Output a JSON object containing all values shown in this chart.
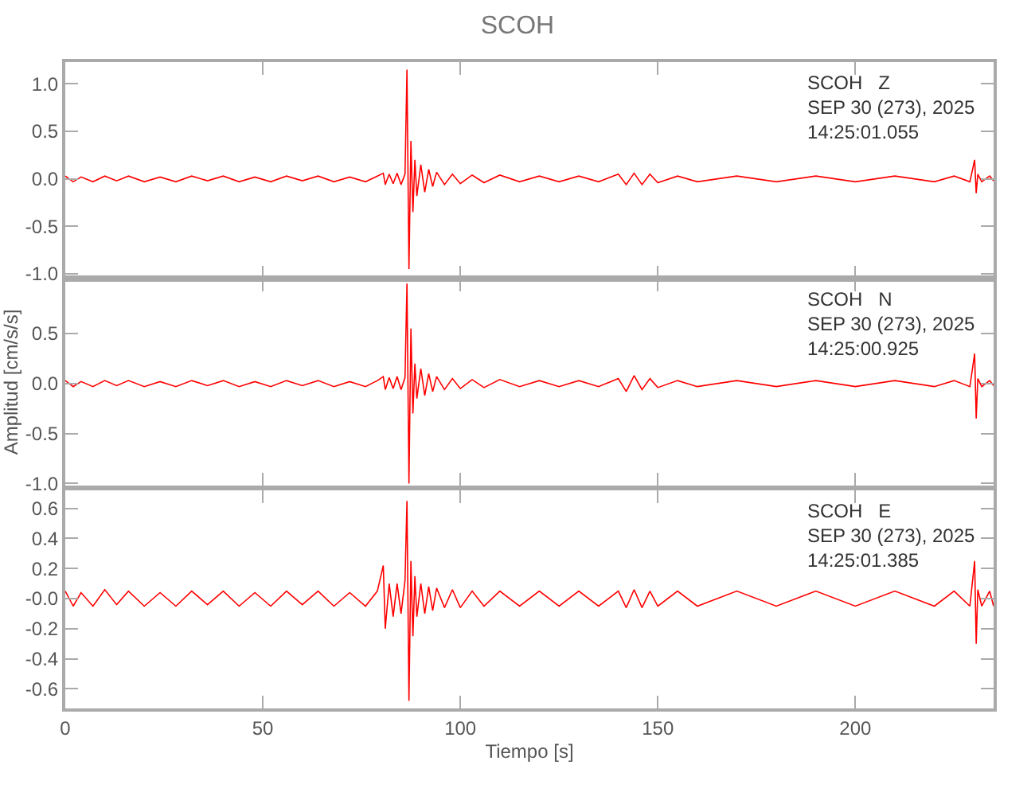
{
  "chart_data": [
    {
      "type": "line",
      "title": "SCOH",
      "annotations": [
        "SCOH   Z",
        "SEP 30 (273), 2025",
        "14:25:01.055"
      ],
      "x": [
        0,
        2,
        4,
        7,
        10,
        13,
        16,
        20,
        24,
        28,
        32,
        36,
        40,
        44,
        48,
        52,
        56,
        60,
        64,
        68,
        72,
        76,
        79,
        80.5,
        81,
        82,
        83,
        84,
        85,
        86,
        86.5,
        87,
        87.5,
        88,
        88.5,
        89,
        90,
        91,
        92,
        93,
        94,
        96,
        98,
        100,
        103,
        106,
        110,
        115,
        120,
        125,
        130,
        135,
        140,
        142,
        144,
        146,
        148,
        150,
        155,
        160,
        170,
        180,
        190,
        200,
        210,
        220,
        225,
        229,
        230.2,
        230.6,
        231,
        232,
        234,
        235
      ],
      "series": [
        {
          "color": "#ff0000",
          "values": [
            0.03,
            -0.03,
            0.02,
            -0.03,
            0.03,
            -0.02,
            0.03,
            -0.03,
            0.02,
            -0.03,
            0.03,
            -0.02,
            0.03,
            -0.03,
            0.02,
            -0.03,
            0.03,
            -0.02,
            0.03,
            -0.03,
            0.02,
            -0.03,
            0.03,
            0.06,
            -0.06,
            0.05,
            -0.05,
            0.06,
            -0.06,
            0.05,
            1.15,
            -0.95,
            0.4,
            -0.35,
            0.2,
            -0.18,
            0.15,
            -0.14,
            0.1,
            -0.08,
            0.07,
            -0.06,
            0.05,
            -0.05,
            0.04,
            -0.04,
            0.04,
            -0.03,
            0.03,
            -0.03,
            0.03,
            -0.03,
            0.05,
            -0.06,
            0.06,
            -0.06,
            0.05,
            -0.04,
            0.03,
            -0.03,
            0.03,
            -0.03,
            0.03,
            -0.03,
            0.03,
            -0.03,
            0.03,
            -0.03,
            0.2,
            -0.15,
            0.05,
            -0.03,
            0.03,
            -0.02
          ]
        }
      ],
      "xlim": [
        0,
        235
      ],
      "xticks": [
        0,
        50,
        100,
        150,
        200
      ],
      "ylim": [
        -1.05,
        1.23
      ],
      "yticks": [
        {
          "value": -1,
          "label": "-1.0"
        },
        -0.5,
        {
          "value": 0,
          "label": "0.0"
        },
        0.5,
        {
          "value": 1,
          "label": "1.0"
        }
      ],
      "tick_labels": "y"
    },
    {
      "type": "line",
      "ylabel": "Amplitud [cm/s/s]",
      "annotations": [
        "SCOH   N",
        "SEP 30 (273), 2025",
        "14:25:00.925"
      ],
      "x": [
        0,
        2,
        4,
        7,
        10,
        13,
        16,
        20,
        24,
        28,
        32,
        36,
        40,
        44,
        48,
        52,
        56,
        60,
        64,
        68,
        72,
        76,
        79,
        80.5,
        81,
        82,
        83,
        84,
        85,
        86,
        86.5,
        87,
        87.5,
        88,
        88.5,
        89,
        90,
        91,
        92,
        93,
        94,
        96,
        98,
        100,
        103,
        106,
        110,
        115,
        120,
        125,
        130,
        135,
        140,
        142,
        144,
        146,
        148,
        150,
        155,
        160,
        170,
        180,
        190,
        200,
        210,
        220,
        225,
        229,
        230.2,
        230.6,
        231,
        232,
        234,
        235
      ],
      "series": [
        {
          "color": "#ff0000",
          "values": [
            0.03,
            -0.03,
            0.02,
            -0.03,
            0.03,
            -0.02,
            0.03,
            -0.03,
            0.02,
            -0.03,
            0.03,
            -0.02,
            0.03,
            -0.03,
            0.02,
            -0.03,
            0.03,
            -0.02,
            0.03,
            -0.03,
            0.02,
            -0.03,
            0.03,
            0.07,
            -0.06,
            0.06,
            -0.05,
            0.07,
            -0.06,
            0.06,
            1.0,
            -1.0,
            0.55,
            -0.3,
            0.2,
            -0.15,
            0.15,
            -0.12,
            0.1,
            -0.08,
            0.07,
            -0.06,
            0.05,
            -0.05,
            0.04,
            -0.04,
            0.04,
            -0.03,
            0.03,
            -0.03,
            0.03,
            -0.03,
            0.05,
            -0.08,
            0.08,
            -0.06,
            0.05,
            -0.04,
            0.03,
            -0.03,
            0.03,
            -0.03,
            0.03,
            -0.03,
            0.03,
            -0.03,
            0.03,
            -0.03,
            0.3,
            -0.35,
            0.05,
            -0.03,
            0.03,
            -0.02
          ]
        }
      ],
      "xlim": [
        0,
        235
      ],
      "xticks": [
        0,
        50,
        100,
        150,
        200
      ],
      "ylim": [
        -1.02,
        1.05
      ],
      "yticks": [
        {
          "value": -1,
          "label": "-1.0"
        },
        -0.5,
        {
          "value": 0,
          "label": "0.0"
        },
        0.5
      ],
      "tick_labels": "y"
    },
    {
      "type": "line",
      "xlabel": "Tiempo [s]",
      "annotations": [
        "SCOH   E",
        "SEP 30 (273), 2025",
        "14:25:01.385"
      ],
      "x": [
        0,
        2,
        4,
        7,
        10,
        13,
        16,
        20,
        24,
        28,
        32,
        36,
        40,
        44,
        48,
        52,
        56,
        60,
        64,
        68,
        72,
        76,
        79,
        80.5,
        81,
        82,
        83,
        84,
        85,
        86,
        86.5,
        87,
        87.5,
        88,
        88.5,
        89,
        90,
        91,
        92,
        93,
        94,
        96,
        98,
        100,
        103,
        106,
        110,
        115,
        120,
        125,
        130,
        135,
        140,
        142,
        144,
        146,
        148,
        150,
        155,
        160,
        170,
        180,
        190,
        200,
        210,
        220,
        225,
        229,
        230.2,
        230.6,
        231,
        232,
        234,
        235
      ],
      "series": [
        {
          "color": "#ff0000",
          "values": [
            0.05,
            -0.05,
            0.04,
            -0.05,
            0.06,
            -0.04,
            0.05,
            -0.05,
            0.04,
            -0.05,
            0.05,
            -0.04,
            0.05,
            -0.05,
            0.04,
            -0.05,
            0.05,
            -0.04,
            0.05,
            -0.05,
            0.04,
            -0.05,
            0.05,
            0.22,
            -0.2,
            0.1,
            -0.12,
            0.1,
            -0.1,
            0.12,
            0.65,
            -0.68,
            0.25,
            -0.25,
            0.15,
            -0.12,
            0.1,
            -0.1,
            0.08,
            -0.08,
            0.07,
            -0.06,
            0.06,
            -0.06,
            0.05,
            -0.05,
            0.05,
            -0.05,
            0.05,
            -0.05,
            0.05,
            -0.05,
            0.05,
            -0.06,
            0.06,
            -0.06,
            0.05,
            -0.05,
            0.05,
            -0.05,
            0.05,
            -0.05,
            0.05,
            -0.05,
            0.05,
            -0.05,
            0.05,
            -0.05,
            0.25,
            -0.3,
            0.06,
            -0.05,
            0.05,
            -0.05
          ]
        }
      ],
      "xlim": [
        0,
        235
      ],
      "xticks": [
        0,
        50,
        100,
        150,
        200
      ],
      "ylim": [
        -0.73,
        0.72
      ],
      "yticks": [
        -0.6,
        -0.4,
        -0.2,
        {
          "value": 0,
          "label": "-0.0"
        },
        0.2,
        0.4,
        0.6
      ]
    }
  ]
}
